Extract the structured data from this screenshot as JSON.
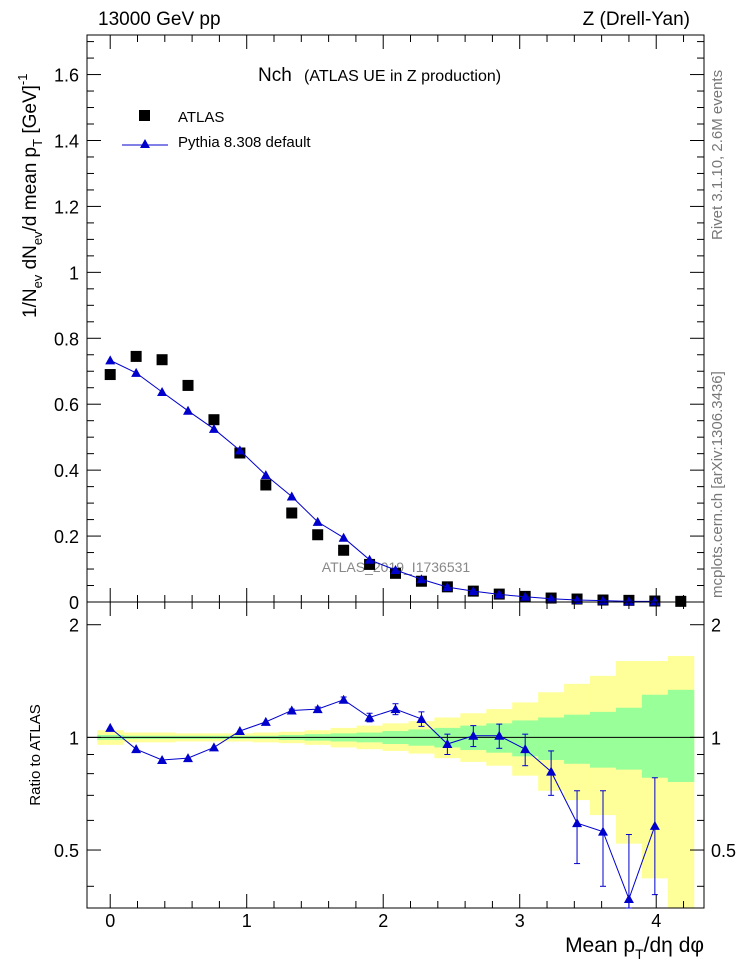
{
  "header": {
    "left": "13000 GeV pp",
    "right": "Z (Drell-Yan)"
  },
  "side_text": {
    "upper": "Rivet 3.1.10,  2.6M events",
    "lower": "mcplots.cern.ch [arXiv:1306.3436]"
  },
  "chart_data": [
    {
      "type": "scatter",
      "title": "Nch (ATLAS UE in Z production)",
      "title_main": "Nch",
      "title_sub": "(ATLAS UE in Z production)",
      "watermark": "ATLAS_2019_I1736531",
      "ylabel": "1/N_ev dN_ev/d mean p_T [GeV]^-1",
      "xlim": [
        -0.17,
        4.35
      ],
      "ylim": [
        0,
        1.72
      ],
      "yticks": [
        0,
        0.2,
        0.4,
        0.6,
        0.8,
        1,
        1.2,
        1.4,
        1.6
      ],
      "ytick_labels": [
        "0",
        "0.2",
        "0.4",
        "0.6",
        "0.8",
        "1",
        "1.2",
        "1.4",
        "1.6"
      ],
      "legend_position": "top-left",
      "series": [
        {
          "name": "ATLAS",
          "marker": "square",
          "color": "#000000",
          "x": [
            0.0,
            0.19,
            0.38,
            0.57,
            0.76,
            0.95,
            1.14,
            1.33,
            1.52,
            1.71,
            1.9,
            2.09,
            2.28,
            2.47,
            2.66,
            2.85,
            3.04,
            3.23,
            3.42,
            3.61,
            3.8,
            3.99,
            4.18
          ],
          "y": [
            0.69,
            0.745,
            0.735,
            0.657,
            0.553,
            0.452,
            0.355,
            0.27,
            0.204,
            0.157,
            0.114,
            0.087,
            0.063,
            0.046,
            0.033,
            0.024,
            0.017,
            0.012,
            0.009,
            0.006,
            0.005,
            0.003,
            0.002
          ]
        },
        {
          "name": "Pythia 8.308 default",
          "marker": "triangle",
          "color": "#0000cc",
          "x": [
            0.0,
            0.19,
            0.38,
            0.57,
            0.76,
            0.95,
            1.14,
            1.33,
            1.52,
            1.71,
            1.9,
            2.09,
            2.28,
            2.47,
            2.66,
            2.85,
            3.04,
            3.23,
            3.42,
            3.61,
            3.8,
            3.99
          ],
          "y": [
            0.733,
            0.695,
            0.637,
            0.58,
            0.525,
            0.46,
            0.385,
            0.32,
            0.243,
            0.195,
            0.128,
            0.097,
            0.069,
            0.045,
            0.033,
            0.023,
            0.016,
            0.01,
            0.006,
            0.004,
            0.002,
            0.002
          ]
        }
      ]
    },
    {
      "type": "scatter",
      "xlabel": "Mean p_T/dη dφ",
      "ylabel": "Ratio to ATLAS",
      "xlim": [
        -0.17,
        4.35
      ],
      "ylim": [
        0.35,
        2.3
      ],
      "xticks": [
        0,
        1,
        2,
        3,
        4
      ],
      "xtick_labels": [
        "0",
        "1",
        "2",
        "3",
        "4"
      ],
      "yticks": [
        0.5,
        1,
        2
      ],
      "ytick_labels": [
        "0.5",
        "1",
        "2"
      ],
      "reference_line": 1,
      "band_edges": [
        -0.095,
        0.095,
        0.285,
        0.475,
        0.665,
        0.855,
        1.045,
        1.235,
        1.425,
        1.615,
        1.805,
        1.995,
        2.185,
        2.375,
        2.565,
        2.755,
        2.945,
        3.135,
        3.325,
        3.515,
        3.705,
        3.895,
        4.085,
        4.275
      ],
      "bands": [
        {
          "name": "stat",
          "color": "#99ff99",
          "lower": [
            0.985,
            0.99,
            0.99,
            0.99,
            0.99,
            0.99,
            0.99,
            0.985,
            0.98,
            0.975,
            0.97,
            0.96,
            0.95,
            0.94,
            0.925,
            0.91,
            0.89,
            0.87,
            0.85,
            0.83,
            0.82,
            0.78,
            0.76
          ],
          "upper": [
            1.015,
            1.01,
            1.01,
            1.01,
            1.01,
            1.01,
            1.01,
            1.015,
            1.02,
            1.025,
            1.03,
            1.04,
            1.05,
            1.06,
            1.075,
            1.09,
            1.11,
            1.13,
            1.15,
            1.17,
            1.2,
            1.3,
            1.34
          ]
        },
        {
          "name": "total",
          "color": "#ffff99",
          "lower": [
            0.955,
            0.97,
            0.97,
            0.975,
            0.975,
            0.975,
            0.97,
            0.965,
            0.955,
            0.94,
            0.93,
            0.92,
            0.905,
            0.88,
            0.86,
            0.84,
            0.79,
            0.72,
            0.68,
            0.62,
            0.52,
            0.42,
            0.35
          ],
          "upper": [
            1.045,
            1.03,
            1.03,
            1.025,
            1.025,
            1.025,
            1.03,
            1.035,
            1.045,
            1.06,
            1.075,
            1.09,
            1.105,
            1.13,
            1.16,
            1.19,
            1.24,
            1.32,
            1.39,
            1.46,
            1.6,
            1.6,
            1.65
          ]
        }
      ],
      "series": [
        {
          "name": "Pythia 8.308 default",
          "marker": "triangle",
          "color": "#0000cc",
          "x": [
            0.0,
            0.19,
            0.38,
            0.57,
            0.76,
            0.95,
            1.14,
            1.33,
            1.52,
            1.71,
            1.9,
            2.09,
            2.28,
            2.47,
            2.66,
            2.85,
            3.04,
            3.23,
            3.42,
            3.61,
            3.8,
            3.99
          ],
          "y": [
            1.06,
            0.93,
            0.87,
            0.88,
            0.94,
            1.04,
            1.1,
            1.18,
            1.19,
            1.26,
            1.13,
            1.19,
            1.12,
            0.96,
            1.01,
            1.01,
            0.93,
            0.81,
            0.59,
            0.56,
            0.37,
            0.58
          ],
          "err": [
            0.003,
            0.003,
            0.003,
            0.003,
            0.004,
            0.005,
            0.006,
            0.01,
            0.015,
            0.022,
            0.03,
            0.04,
            0.05,
            0.06,
            0.065,
            0.075,
            0.09,
            0.11,
            0.13,
            0.16,
            0.18,
            0.2
          ]
        }
      ]
    }
  ]
}
